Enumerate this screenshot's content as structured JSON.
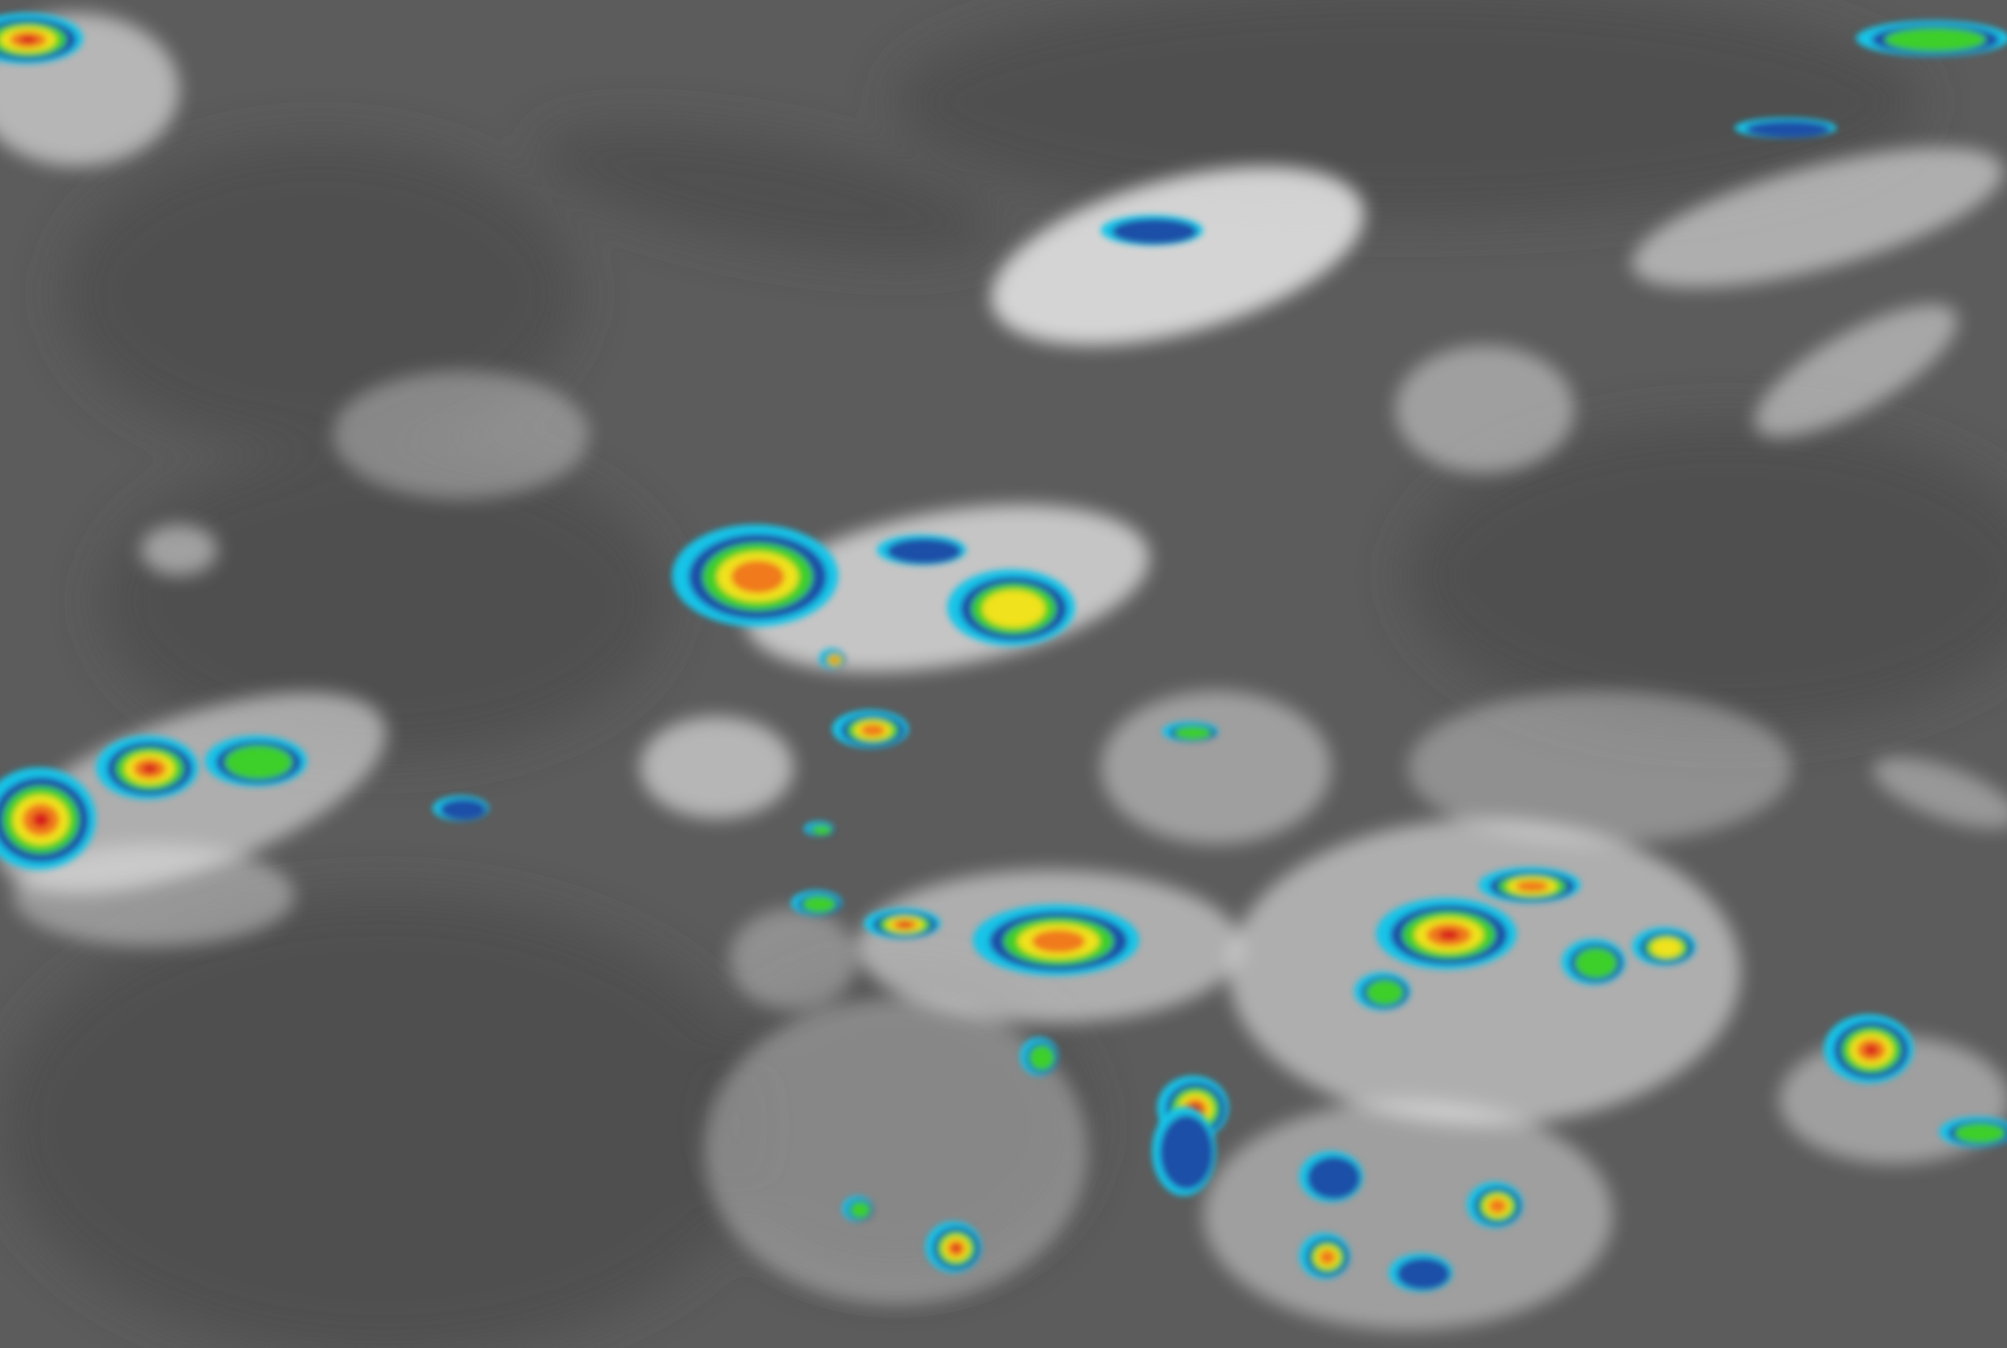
{
  "image": {
    "kind": "infrared satellite imagery with enhanced cloud-top color scale",
    "colors": {
      "background_gray": "#5c5c5c",
      "land_dark_gray": "#4e4e4e",
      "cloud_white": "#f2f2f2",
      "enhancement_blue": "#1f4fa8",
      "enhancement_cyan": "#17c4e8",
      "enhancement_green": "#3ccf2a",
      "enhancement_yellow": "#f0e21a",
      "enhancement_orange": "#f07a1a",
      "enhancement_red": "#d81f1f"
    }
  }
}
